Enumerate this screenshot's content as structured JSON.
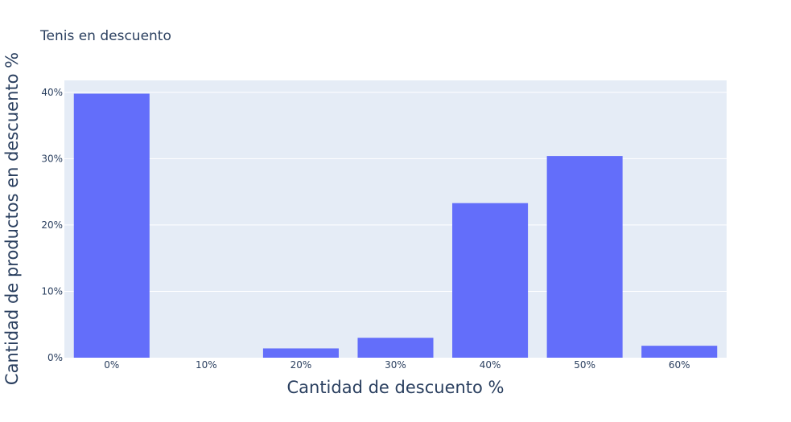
{
  "chart_data": {
    "type": "bar",
    "title": "Tenis en descuento",
    "xlabel": "Cantidad de descuento %",
    "ylabel": "Cantidad de productos en descuento %",
    "categories": [
      "0%",
      "10%",
      "20%",
      "30%",
      "40%",
      "50%",
      "60%"
    ],
    "values": [
      39.8,
      0,
      1.4,
      3.0,
      23.3,
      30.4,
      1.8
    ],
    "ylim": [
      0,
      41.8
    ],
    "yticks": [
      0,
      10,
      20,
      30,
      40
    ],
    "ytick_labels": [
      "0%",
      "10%",
      "20%",
      "30%",
      "40%"
    ],
    "grid": true,
    "colors": {
      "bar": "#636efa",
      "plot_bg": "#e5ecf6",
      "grid": "#ffffff",
      "text": "#2a3f5f"
    }
  }
}
